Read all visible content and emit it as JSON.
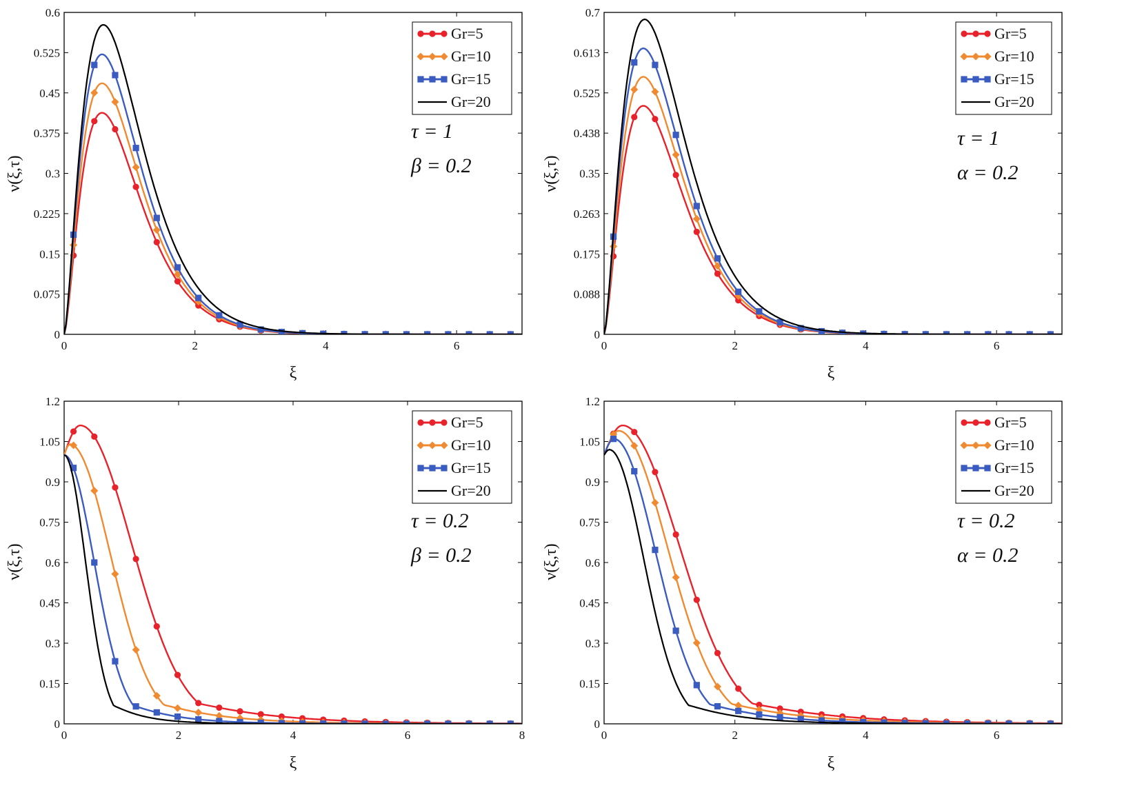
{
  "figure": {
    "legend_labels": [
      "Gr=5",
      "Gr=10",
      "Gr=15",
      "Gr=20"
    ]
  },
  "chart_data": [
    {
      "id": "top-left",
      "type": "line",
      "xlabel": "ξ",
      "ylabel": "ν(ξ,τ)",
      "xlim": [
        0,
        7
      ],
      "ylim": [
        0,
        0.6
      ],
      "xticks": [
        "0",
        "2",
        "4",
        "6"
      ],
      "xtick_values": [
        0,
        2,
        4,
        6
      ],
      "yticks": [
        "0",
        "0.075",
        "0.15",
        "0.225",
        "0.3",
        "0.375",
        "0.45",
        "0.525",
        "0.6"
      ],
      "ytick_values": [
        0,
        0.075,
        0.15,
        0.225,
        0.3,
        0.375,
        0.45,
        0.525,
        0.6
      ],
      "annotations": [
        "τ = 1",
        "β = 0.2"
      ],
      "legend": "top-right",
      "series": [
        {
          "name": "Gr=5",
          "color": "#e8222a",
          "marker": "circle",
          "shape": "hump",
          "peak_x": 0.58,
          "peak_y": 0.413
        },
        {
          "name": "Gr=10",
          "color": "#f08a30",
          "marker": "diamond",
          "shape": "hump",
          "peak_x": 0.58,
          "peak_y": 0.468
        },
        {
          "name": "Gr=15",
          "color": "#3a5bbf",
          "marker": "square",
          "shape": "hump",
          "peak_x": 0.58,
          "peak_y": 0.522
        },
        {
          "name": "Gr=20",
          "color": "#000000",
          "marker": "none",
          "shape": "hump",
          "peak_x": 0.6,
          "peak_y": 0.577
        }
      ]
    },
    {
      "id": "top-right",
      "type": "line",
      "xlabel": "ξ",
      "ylabel": "ν(ξ,τ)",
      "xlim": [
        0,
        7
      ],
      "ylim": [
        0,
        0.7
      ],
      "xticks": [
        "0",
        "2",
        "4",
        "6"
      ],
      "xtick_values": [
        0,
        2,
        4,
        6
      ],
      "yticks": [
        "0",
        "0.088",
        "0.175",
        "0.263",
        "0.35",
        "0.438",
        "0.525",
        "0.613",
        "0.7"
      ],
      "ytick_values": [
        0,
        0.0875,
        0.175,
        0.2625,
        0.35,
        0.4375,
        0.525,
        0.6125,
        0.7
      ],
      "annotations": [
        "τ = 1",
        "α = 0.2"
      ],
      "legend": "top-right",
      "series": [
        {
          "name": "Gr=5",
          "color": "#e8222a",
          "marker": "circle",
          "shape": "hump",
          "peak_x": 0.6,
          "peak_y": 0.497
        },
        {
          "name": "Gr=10",
          "color": "#f08a30",
          "marker": "diamond",
          "shape": "hump",
          "peak_x": 0.6,
          "peak_y": 0.56
        },
        {
          "name": "Gr=15",
          "color": "#3a5bbf",
          "marker": "square",
          "shape": "hump",
          "peak_x": 0.6,
          "peak_y": 0.622
        },
        {
          "name": "Gr=20",
          "color": "#000000",
          "marker": "none",
          "shape": "hump",
          "peak_x": 0.62,
          "peak_y": 0.685
        }
      ]
    },
    {
      "id": "bottom-left",
      "type": "line",
      "xlabel": "ξ",
      "ylabel": "ν(ξ,τ)",
      "xlim": [
        0,
        8
      ],
      "ylim": [
        0,
        1.2
      ],
      "xticks": [
        "0",
        "2",
        "4",
        "6",
        "8"
      ],
      "xtick_values": [
        0,
        2,
        4,
        6,
        8
      ],
      "yticks": [
        "0",
        "0.15",
        "0.3",
        "0.45",
        "0.6",
        "0.75",
        "0.9",
        "1.05",
        "1.2"
      ],
      "ytick_values": [
        0,
        0.15,
        0.3,
        0.45,
        0.6,
        0.75,
        0.9,
        1.05,
        1.2
      ],
      "annotations": [
        "τ = 0.2",
        "β = 0.2"
      ],
      "legend": "top-right",
      "series": [
        {
          "name": "Gr=5",
          "color": "#e8222a",
          "marker": "circle",
          "shape": "decay",
          "start_y": 1.0,
          "peak_x": 0.28,
          "peak_y": 1.11,
          "width": 1.2
        },
        {
          "name": "Gr=10",
          "color": "#f08a30",
          "marker": "diamond",
          "shape": "decay",
          "start_y": 1.0,
          "peak_x": 0.1,
          "peak_y": 1.04,
          "width": 0.95
        },
        {
          "name": "Gr=15",
          "color": "#3a5bbf",
          "marker": "square",
          "shape": "decay",
          "start_y": 1.0,
          "peak_x": 0.0,
          "peak_y": 1.0,
          "width": 0.7
        },
        {
          "name": "Gr=20",
          "color": "#000000",
          "marker": "none",
          "shape": "decay",
          "start_y": 1.0,
          "peak_x": 0.0,
          "peak_y": 1.0,
          "width": 0.5
        }
      ]
    },
    {
      "id": "bottom-right",
      "type": "line",
      "xlabel": "ξ",
      "ylabel": "ν(ξ,τ)",
      "xlim": [
        0,
        7
      ],
      "ylim": [
        0,
        1.2
      ],
      "xticks": [
        "0",
        "2",
        "4",
        "6"
      ],
      "xtick_values": [
        0,
        2,
        4,
        6
      ],
      "yticks": [
        "0",
        "0.15",
        "0.3",
        "0.45",
        "0.6",
        "0.75",
        "0.9",
        "1.05",
        "1.2"
      ],
      "ytick_values": [
        0,
        0.15,
        0.3,
        0.45,
        0.6,
        0.75,
        0.9,
        1.05,
        1.2
      ],
      "annotations": [
        "τ = 0.2",
        "α = 0.2"
      ],
      "legend": "top-right",
      "series": [
        {
          "name": "Gr=5",
          "color": "#e8222a",
          "marker": "circle",
          "shape": "decay",
          "start_y": 1.0,
          "peak_x": 0.28,
          "peak_y": 1.11,
          "width": 1.15
        },
        {
          "name": "Gr=10",
          "color": "#f08a30",
          "marker": "diamond",
          "shape": "decay",
          "start_y": 1.0,
          "peak_x": 0.22,
          "peak_y": 1.09,
          "width": 1.0
        },
        {
          "name": "Gr=15",
          "color": "#3a5bbf",
          "marker": "square",
          "shape": "decay",
          "start_y": 1.0,
          "peak_x": 0.15,
          "peak_y": 1.06,
          "width": 0.85
        },
        {
          "name": "Gr=20",
          "color": "#000000",
          "marker": "none",
          "shape": "decay",
          "start_y": 1.0,
          "peak_x": 0.08,
          "peak_y": 1.02,
          "width": 0.7
        }
      ]
    }
  ]
}
